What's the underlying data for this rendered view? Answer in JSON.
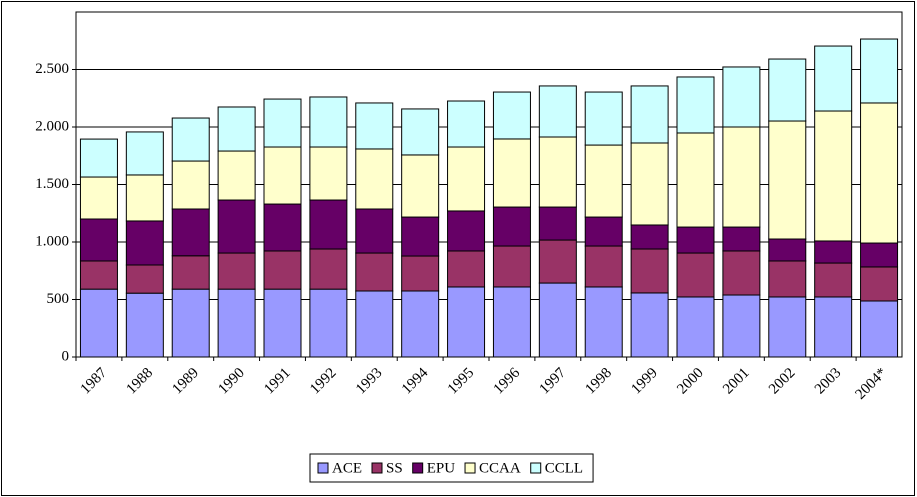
{
  "chart_data": {
    "type": "stacked_bar",
    "categories": [
      "1987",
      "1988",
      "1989",
      "1990",
      "1991",
      "1992",
      "1993",
      "1994",
      "1995",
      "1996",
      "1997",
      "1998",
      "1999",
      "2000",
      "2001",
      "2002",
      "2003",
      "2004*"
    ],
    "series": [
      {
        "name": "ACE",
        "color": "#9999ff",
        "values": [
          590,
          555,
          590,
          590,
          590,
          590,
          574,
          574,
          609,
          609,
          643,
          609,
          557,
          522,
          539,
          522,
          522,
          487
        ]
      },
      {
        "name": "SS",
        "color": "#993366",
        "values": [
          245,
          245,
          290,
          314,
          332,
          349,
          330,
          304,
          313,
          356,
          374,
          356,
          382,
          382,
          383,
          313,
          295,
          296
        ]
      },
      {
        "name": "EPU",
        "color": "#660066",
        "values": [
          365,
          383,
          407,
          461,
          408,
          426,
          383,
          339,
          348,
          339,
          287,
          252,
          209,
          226,
          208,
          191,
          192,
          208
        ]
      },
      {
        "name": "CCAA",
        "color": "#ffffcc",
        "values": [
          365,
          400,
          417,
          426,
          496,
          461,
          522,
          540,
          556,
          592,
          609,
          626,
          713,
          818,
          870,
          1026,
          1130,
          1218
        ]
      },
      {
        "name": "CCLL",
        "color": "#ccffff",
        "values": [
          330,
          374,
          374,
          383,
          417,
          435,
          400,
          400,
          400,
          408,
          444,
          461,
          496,
          487,
          522,
          539,
          565,
          556
        ]
      }
    ],
    "ylim": [
      0,
      3000
    ],
    "yticks": [
      0,
      500,
      {
        "value": 1000,
        "label": "1.000"
      },
      {
        "value": 1500,
        "label": "1.500"
      },
      {
        "value": 2000,
        "label": "2.000"
      },
      {
        "value": 2500,
        "label": "2.500"
      }
    ],
    "grid": true,
    "legend": "bottom"
  }
}
